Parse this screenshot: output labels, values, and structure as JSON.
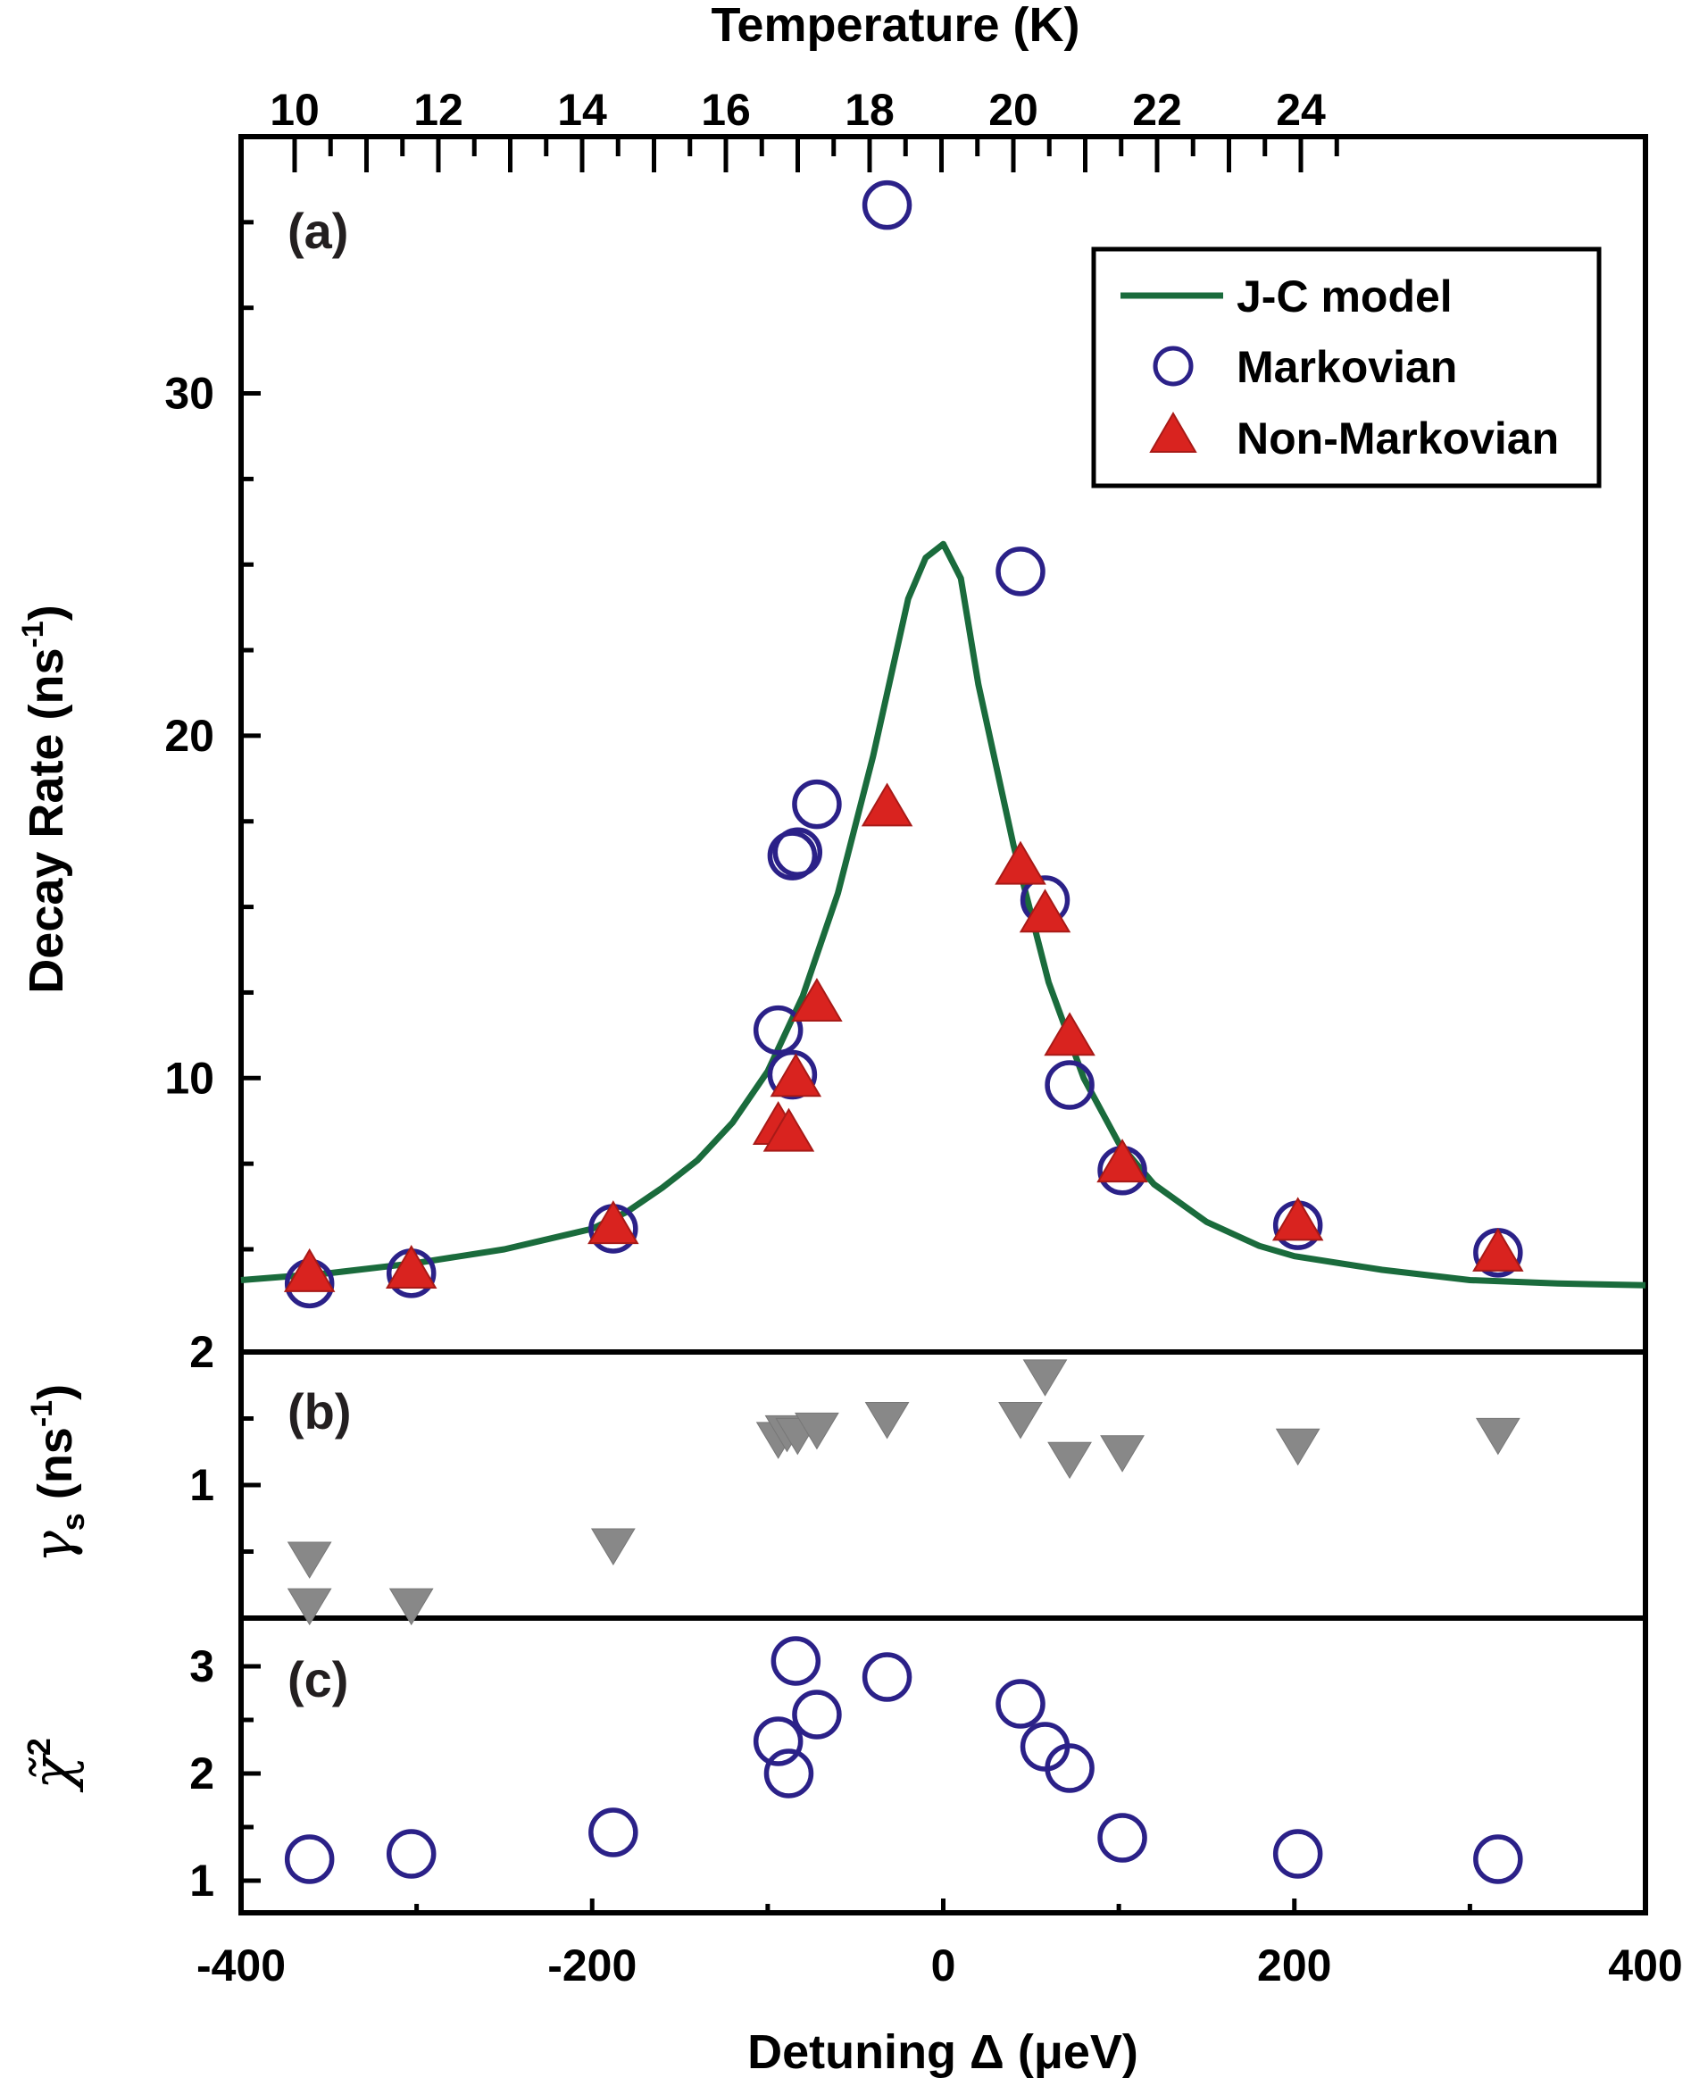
{
  "chart_data": {
    "type": "scatter",
    "top_axis": {
      "label": "Temperature (K)",
      "tick_labels": [
        "10",
        "12",
        "14",
        "16",
        "18",
        "20",
        "22",
        "24"
      ],
      "tick_values": [
        10,
        12,
        14,
        16,
        18,
        20,
        22,
        24
      ]
    },
    "x_axis": {
      "label": "Detuning Δ (μeV)",
      "range": [
        -400,
        400
      ],
      "tick_labels": [
        "-400",
        "-200",
        "0",
        "200",
        "400"
      ],
      "tick_values": [
        -400,
        -200,
        0,
        200,
        400
      ]
    },
    "panels": [
      {
        "id": "a",
        "panel_label": "(a)",
        "ylabel": "Decay Rate (ns-1)",
        "ylabel_main": "Decay Rate (ns",
        "ylabel_sup": "-1",
        "ylabel_close": ")",
        "ylim": [
          2,
          37.5
        ],
        "tick_labels": [
          "2",
          "10",
          "20",
          "30"
        ],
        "tick_values": [
          2,
          10,
          20,
          30
        ],
        "legend": {
          "position": "top-right",
          "items": [
            {
              "label": "J-C model",
              "marker": "line",
              "color": "#1a6b3c"
            },
            {
              "label": "Markovian",
              "marker": "open-circle",
              "color": "#2b2188"
            },
            {
              "label": "Non-Markovian",
              "marker": "filled-triangle-up",
              "color": "#d9231f"
            }
          ]
        },
        "series": [
          {
            "name": "J-C model",
            "kind": "line",
            "color": "#1a6b3c",
            "x": [
              -400,
              -350,
              -300,
              -250,
              -200,
              -180,
              -160,
              -140,
              -120,
              -100,
              -80,
              -60,
              -40,
              -20,
              -10,
              0,
              10,
              20,
              40,
              60,
              80,
              100,
              120,
              150,
              180,
              200,
              250,
              300,
              350,
              400
            ],
            "y": [
              4.1,
              4.3,
              4.6,
              5.0,
              5.6,
              6.1,
              6.8,
              7.6,
              8.7,
              10.2,
              12.4,
              15.4,
              19.4,
              24.0,
              25.2,
              25.6,
              24.6,
              21.5,
              16.8,
              12.8,
              10.0,
              8.1,
              6.9,
              5.8,
              5.1,
              4.8,
              4.4,
              4.1,
              4.0,
              3.95
            ]
          },
          {
            "name": "Markovian",
            "kind": "open-circle",
            "color": "#2b2188",
            "x": [
              -361,
              -303,
              -188,
              -94,
              -86,
              -86,
              -83,
              -72,
              -32,
              44,
              58,
              72,
              102,
              202,
              316
            ],
            "y": [
              4.0,
              4.3,
              5.6,
              11.4,
              10.1,
              16.5,
              16.6,
              18.0,
              35.5,
              24.8,
              15.2,
              9.8,
              7.3,
              5.7,
              4.9
            ]
          },
          {
            "name": "Non-Markovian",
            "kind": "filled-triangle-up",
            "color": "#d9231f",
            "x": [
              -361,
              -303,
              -188,
              -94,
              -88,
              -84,
              -72,
              -32,
              44,
              58,
              72,
              102,
              202,
              316
            ],
            "y": [
              4.3,
              4.4,
              5.7,
              8.6,
              8.4,
              10.0,
              12.2,
              17.9,
              16.2,
              14.8,
              11.2,
              7.5,
              5.8,
              4.9
            ]
          }
        ]
      },
      {
        "id": "b",
        "panel_label": "(b)",
        "ylabel": "γs (ns-1)",
        "ylabel_greek": "γ",
        "ylabel_sub": "s",
        "ylabel_rest": " (ns",
        "ylabel_sup": "-1",
        "ylabel_close": ")",
        "ylim": [
          0,
          2
        ],
        "tick_labels": [
          "1"
        ],
        "tick_values": [
          1
        ],
        "series": [
          {
            "name": "γs",
            "kind": "filled-triangle-down",
            "color": "#888888",
            "x": [
              -361,
              -361,
              -303,
              -188,
              -94,
              -89,
              -83,
              -72,
              -32,
              44,
              58,
              72,
              102,
              202,
              316
            ],
            "y": [
              0.45,
              0.1,
              0.1,
              0.55,
              1.35,
              1.4,
              1.38,
              1.42,
              1.5,
              1.5,
              1.82,
              1.2,
              1.25,
              1.3,
              1.38
            ]
          }
        ]
      },
      {
        "id": "c",
        "panel_label": "(c)",
        "ylabel": "χ̃2",
        "ylabel_main": "χ̃",
        "ylabel_sup": "2",
        "ylim": [
          0.7,
          3.45
        ],
        "tick_labels": [
          "1",
          "2",
          "3"
        ],
        "tick_values": [
          1,
          2,
          3
        ],
        "series": [
          {
            "name": "Reduced chi-square",
            "kind": "open-circle",
            "color": "#2b2188",
            "x": [
              -361,
              -303,
              -188,
              -94,
              -88,
              -84,
              -72,
              -32,
              44,
              58,
              72,
              102,
              202,
              316
            ],
            "y": [
              1.2,
              1.25,
              1.45,
              2.3,
              2.0,
              3.05,
              2.55,
              2.9,
              2.65,
              2.25,
              2.05,
              1.4,
              1.25,
              1.2
            ]
          }
        ]
      }
    ]
  }
}
